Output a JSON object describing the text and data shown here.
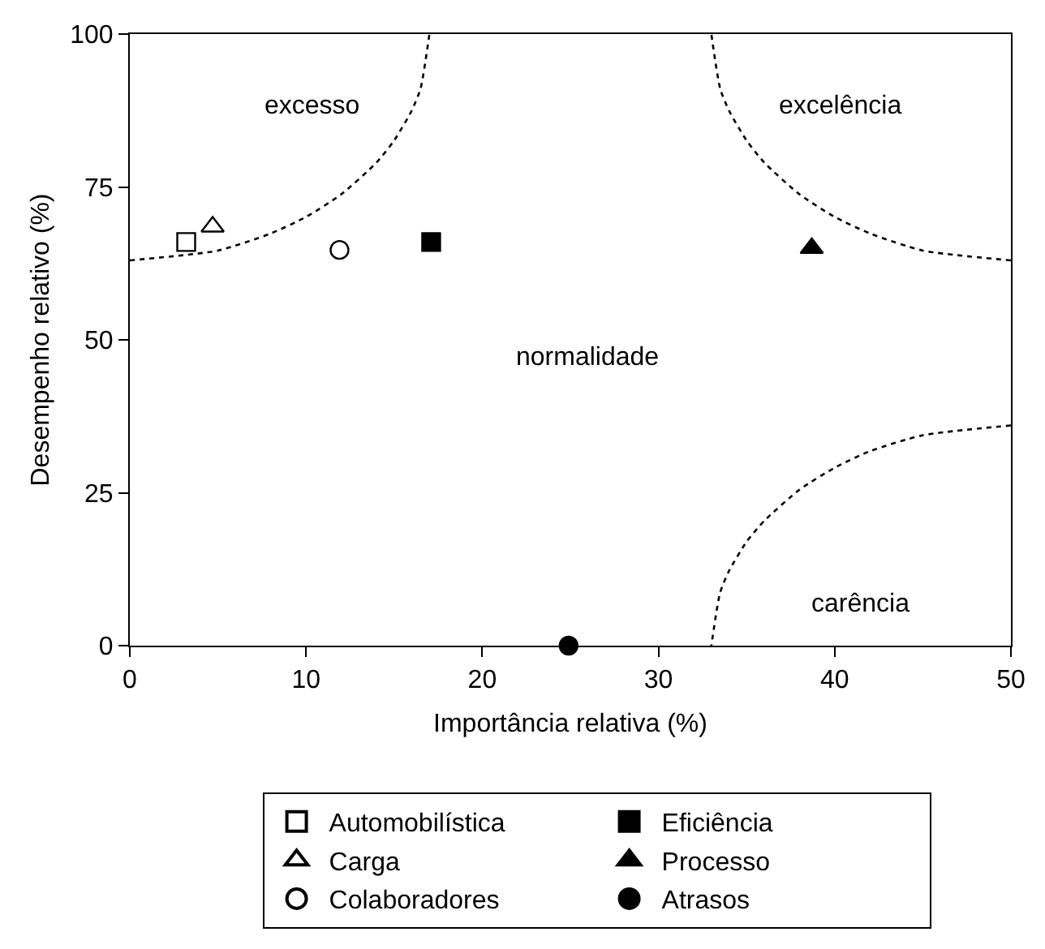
{
  "chart_data": {
    "type": "scatter",
    "xlabel": "Importância relativa (%)",
    "ylabel": "Desempenho relativo (%)",
    "xlim": [
      0,
      50
    ],
    "xticks": [
      0,
      10,
      20,
      30,
      40,
      50
    ],
    "ylim": [
      0,
      100
    ],
    "yticks": [
      0,
      25,
      50,
      75,
      100
    ],
    "legend": "bottom",
    "series": [
      {
        "name": "Automobilística",
        "color": "#000000",
        "marker": "square-open",
        "x": [
          3.2
        ],
        "values": [
          66
        ]
      },
      {
        "name": "Eficiência",
        "color": "#000000",
        "marker": "square",
        "x": [
          17.1
        ],
        "values": [
          66
        ]
      },
      {
        "name": "Carga",
        "color": "#000000",
        "marker": "triangle-open",
        "x": [
          4.7
        ],
        "values": [
          68.5
        ]
      },
      {
        "name": "Processo",
        "color": "#000000",
        "marker": "triangle",
        "x": [
          38.7
        ],
        "values": [
          65
        ]
      },
      {
        "name": "Colaboradores",
        "color": "#000000",
        "marker": "circle-open",
        "x": [
          11.9
        ],
        "values": [
          64.7
        ]
      },
      {
        "name": "Atrasos",
        "color": "#000000",
        "marker": "circle",
        "x": [
          24.9
        ],
        "values": [
          0
        ]
      },
      {
        "type": "line",
        "color": "#000000",
        "line_style": "dotted",
        "marker": "none",
        "x": [
          0,
          5,
          8,
          10,
          12,
          14,
          15,
          16,
          16.5,
          17
        ],
        "values": [
          63,
          64.6,
          67.4,
          70.1,
          73.8,
          79.0,
          82.6,
          87.5,
          91.1,
          100
        ]
      },
      {
        "type": "line",
        "color": "#000000",
        "line_style": "dotted",
        "marker": "none",
        "x": [
          50,
          45,
          42,
          40,
          38,
          36,
          35,
          34,
          33.5,
          33
        ],
        "values": [
          63,
          64.6,
          67.4,
          70.1,
          73.8,
          79.0,
          82.6,
          87.5,
          91.1,
          100
        ]
      },
      {
        "type": "line",
        "color": "#000000",
        "line_style": "dotted",
        "marker": "none",
        "x": [
          50,
          45,
          42,
          40,
          38,
          36,
          35,
          34,
          33.5,
          33
        ],
        "values": [
          36,
          34.4,
          31.8,
          29.1,
          25.5,
          20.4,
          17.0,
          12.2,
          8.7,
          0
        ]
      }
    ],
    "annotations": [
      "excesso",
      "excelência",
      "normalidade",
      "carência"
    ]
  }
}
